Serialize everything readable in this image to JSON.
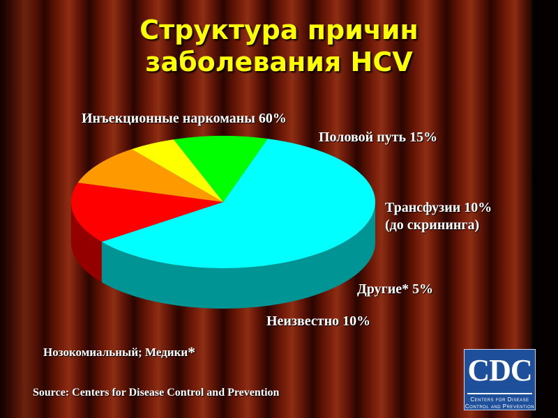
{
  "slide": {
    "title_line1": "Структура причин",
    "title_line2": "заболевания HCV",
    "footnote": "Нозокомиальный; Медики",
    "footnote_star": "*",
    "source": "Source: Centers for Disease Control and Prevention"
  },
  "logo": {
    "mark": "CDC",
    "line1": "Centers for Disease",
    "line2": "Control and Prevention"
  },
  "colors": {
    "title": "#ffff00",
    "label": "#ffffff",
    "curtain_dark": "#1e0300",
    "curtain_light": "#8a2a12"
  },
  "chart_data": {
    "type": "pie",
    "title": "",
    "three_d": true,
    "slices": [
      {
        "label": "Инъекционные наркоманы 60%",
        "value": 60,
        "color": "#00ffff"
      },
      {
        "label": "Половой путь 15%",
        "value": 15,
        "color": "#ff0000"
      },
      {
        "label": "Трансфузии 10%",
        "label_line2": "(до скрининга)",
        "value": 10,
        "color": "#ff9900"
      },
      {
        "label": "Другие* 5%",
        "value": 5,
        "color": "#ffff00"
      },
      {
        "label": "Неизвестно 10%",
        "value": 10,
        "color": "#00ff00"
      }
    ]
  }
}
